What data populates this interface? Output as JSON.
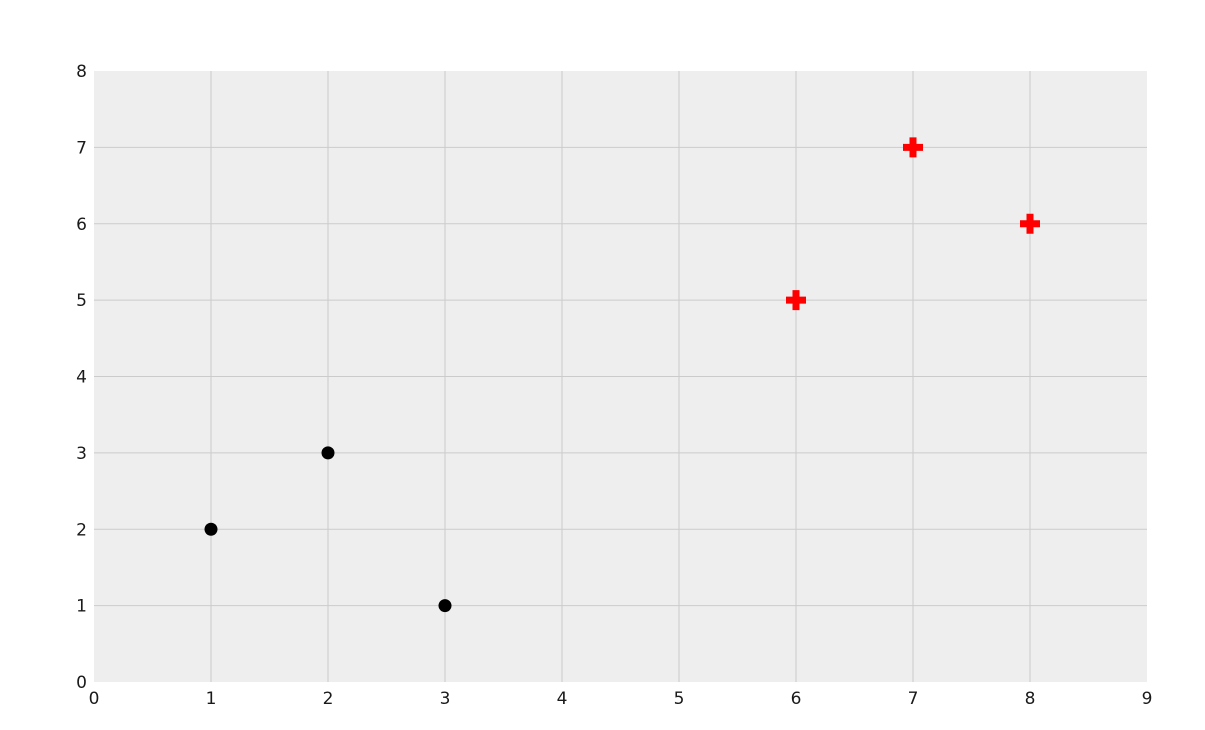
{
  "chart_data": {
    "type": "scatter",
    "title": "",
    "xlabel": "",
    "ylabel": "",
    "xlim": [
      0,
      9
    ],
    "ylim": [
      0,
      8
    ],
    "x_ticks": [
      0,
      1,
      2,
      3,
      4,
      5,
      6,
      7,
      8,
      9
    ],
    "x_tick_labels": [
      "0",
      "1",
      "2",
      "3",
      "4",
      "5",
      "6",
      "7",
      "8",
      "9"
    ],
    "y_ticks": [
      0,
      1,
      2,
      3,
      4,
      5,
      6,
      7,
      8
    ],
    "y_tick_labels": [
      "0",
      "1",
      "2",
      "3",
      "4",
      "5",
      "6",
      "7",
      "8"
    ],
    "grid": true,
    "legend": "none",
    "series": [
      {
        "name": "black-circle-points",
        "marker": "circle",
        "color": "#000000",
        "marker_size": 13,
        "points": [
          [
            1,
            2
          ],
          [
            2,
            3
          ],
          [
            3,
            1
          ]
        ]
      },
      {
        "name": "red-plus-points",
        "marker": "plus-filled",
        "color": "#ff0000",
        "marker_size": 20,
        "points": [
          [
            6,
            5
          ],
          [
            7,
            7
          ],
          [
            8,
            6
          ]
        ]
      }
    ],
    "style": {
      "figure_background": "#ffffff",
      "plot_background": "#eeeeee",
      "grid_color": "#cbcbcb",
      "tick_label_color": "#1a1a1a"
    }
  }
}
